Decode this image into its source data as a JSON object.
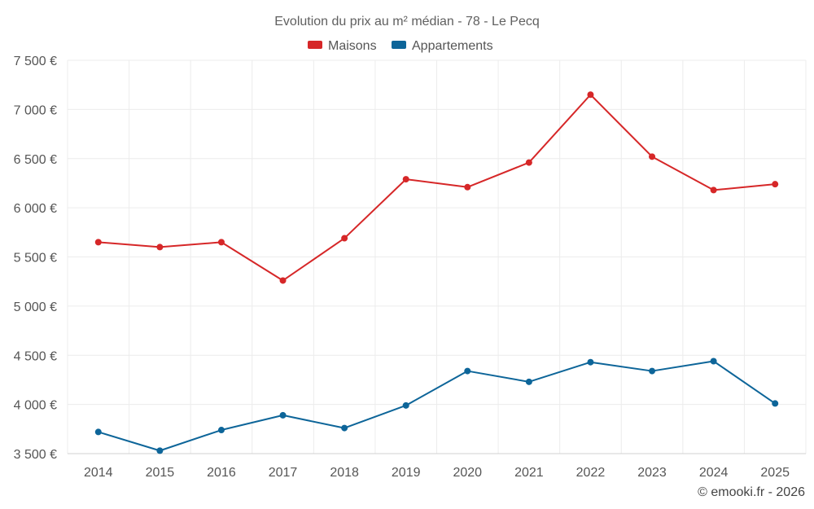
{
  "chart_data": {
    "type": "line",
    "title": "Evolution du prix au m² médian - 78 - Le Pecq",
    "categories": [
      "2014",
      "2015",
      "2016",
      "2017",
      "2018",
      "2019",
      "2020",
      "2021",
      "2022",
      "2023",
      "2024",
      "2025"
    ],
    "series": [
      {
        "name": "Maisons",
        "color": "#d62728",
        "values": [
          5650,
          5600,
          5650,
          5260,
          5690,
          6290,
          6210,
          6460,
          7150,
          6520,
          6180,
          6240
        ]
      },
      {
        "name": "Appartements",
        "color": "#0d6599",
        "values": [
          3720,
          3530,
          3740,
          3890,
          3760,
          3990,
          4340,
          4230,
          4430,
          4340,
          4440,
          4010
        ]
      }
    ],
    "ylim": [
      3500,
      7500
    ],
    "yticks": [
      3500,
      4000,
      4500,
      5000,
      5500,
      6000,
      6500,
      7000,
      7500
    ],
    "ytick_labels": [
      "3 500 €",
      "4 000 €",
      "4 500 €",
      "5 000 €",
      "5 500 €",
      "6 000 €",
      "6 500 €",
      "7 000 €",
      "7 500 €"
    ],
    "xlabel": "",
    "ylabel": "",
    "grid": true,
    "legend_position": "top-center",
    "credit": "© emooki.fr - 2026"
  }
}
